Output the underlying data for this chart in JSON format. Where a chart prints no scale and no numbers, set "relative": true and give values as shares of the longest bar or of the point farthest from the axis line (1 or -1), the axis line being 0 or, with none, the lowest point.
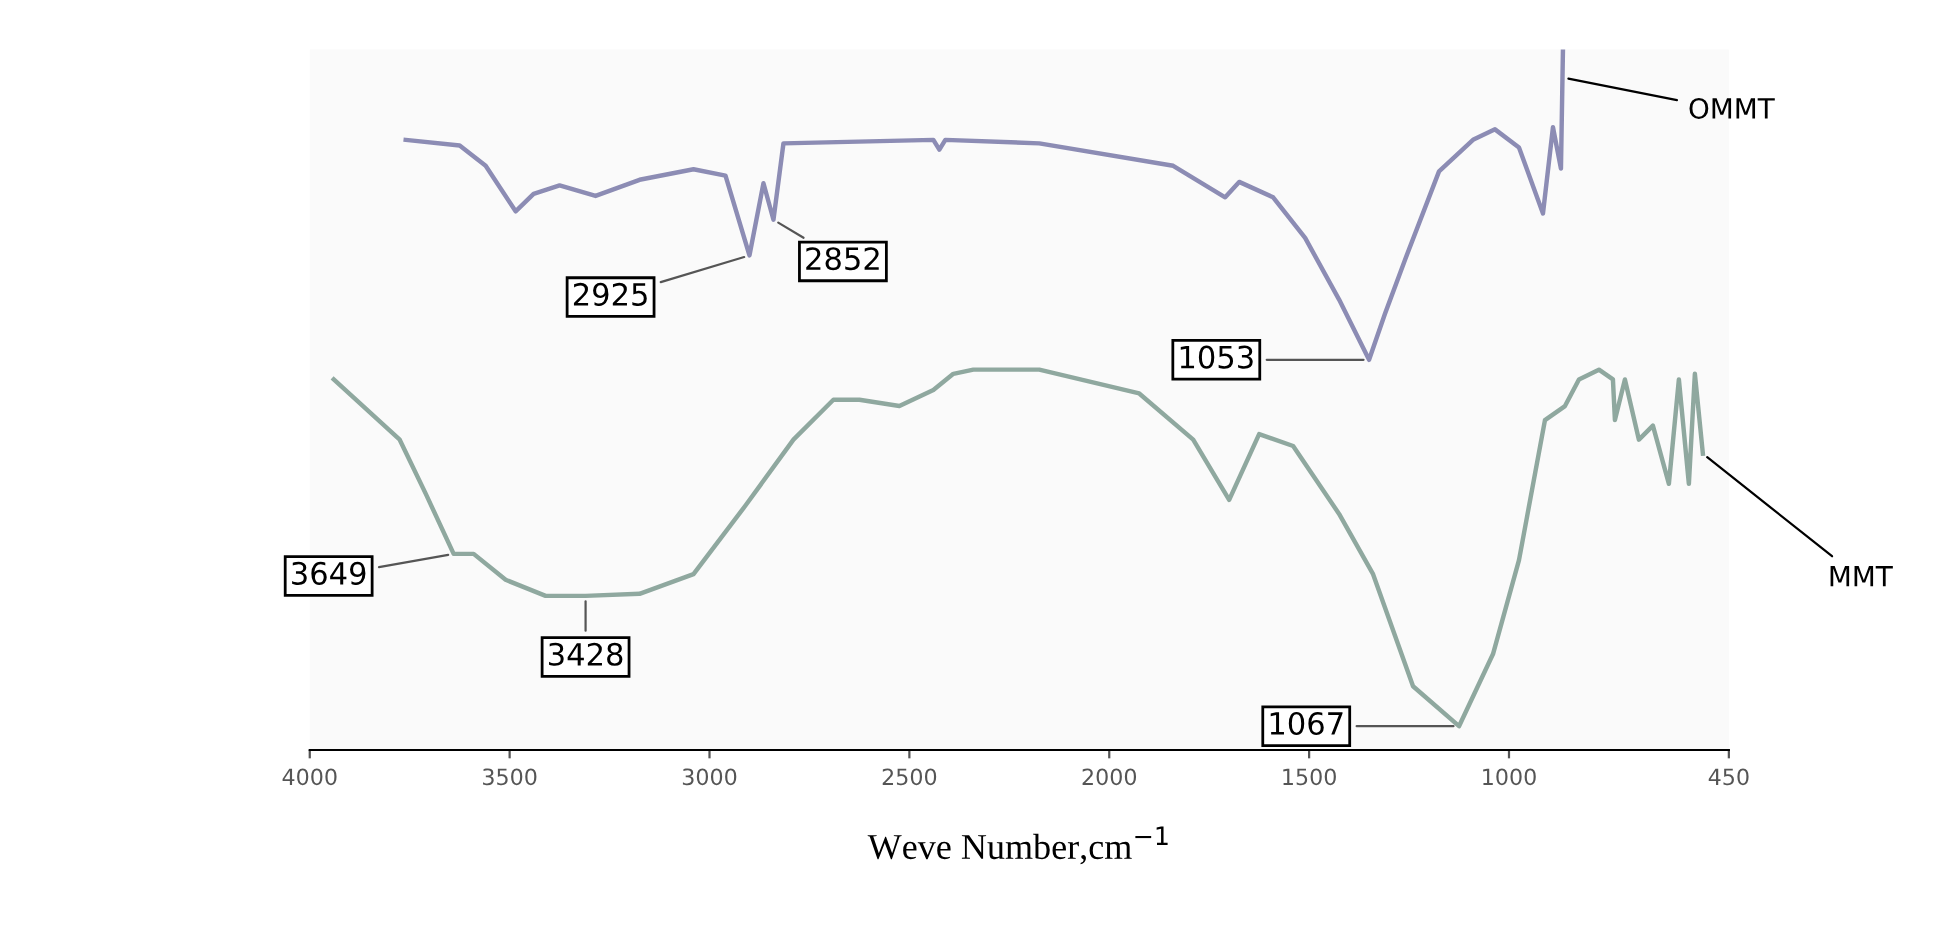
{
  "chart_data": {
    "type": "line",
    "relative": true,
    "xlabel": "Weve Number,cm$^{−1}$",
    "xlim": [
      4000,
      450
    ],
    "xticks": [
      4000,
      3500,
      3000,
      2500,
      2000,
      1500,
      1000,
      450
    ],
    "grid": false,
    "legend": false,
    "marker": "none",
    "line_style": "solid",
    "series": [
      {
        "name": "OMMT",
        "color": "#8c8cb4",
        "x": [
          3760,
          3625,
          3560,
          3485,
          3440,
          3375,
          3285,
          3175,
          3040,
          2960,
          2900,
          2865,
          2840,
          2815,
          2440,
          2425,
          2410,
          2175,
          1840,
          1710,
          1675,
          1590,
          1510,
          1425,
          1350,
          1310,
          1260,
          1175,
          1090,
          1035,
          975,
          915,
          890,
          870,
          865
        ],
        "values": [
          0.871,
          0.863,
          0.834,
          0.769,
          0.794,
          0.806,
          0.791,
          0.814,
          0.829,
          0.82,
          0.706,
          0.809,
          0.757,
          0.866,
          0.871,
          0.857,
          0.871,
          0.866,
          0.834,
          0.789,
          0.811,
          0.789,
          0.731,
          0.643,
          0.557,
          0.623,
          0.7,
          0.826,
          0.871,
          0.886,
          0.86,
          0.766,
          0.889,
          0.83,
          1.0
        ]
      },
      {
        "name": "MMT",
        "color": "#8fa89f",
        "x": [
          3940,
          3775,
          3710,
          3640,
          3590,
          3510,
          3410,
          3310,
          3175,
          3040,
          2910,
          2790,
          2690,
          2625,
          2525,
          2440,
          2390,
          2340,
          2175,
          1925,
          1790,
          1700,
          1625,
          1540,
          1425,
          1340,
          1240,
          1125,
          1040,
          975,
          910,
          860,
          825,
          775,
          740,
          735,
          710,
          675,
          640,
          600,
          575,
          550,
          535,
          515
        ],
        "values": [
          0.529,
          0.443,
          0.366,
          0.28,
          0.28,
          0.243,
          0.22,
          0.22,
          0.223,
          0.251,
          0.349,
          0.443,
          0.5,
          0.5,
          0.491,
          0.514,
          0.537,
          0.543,
          0.543,
          0.509,
          0.443,
          0.357,
          0.451,
          0.434,
          0.337,
          0.251,
          0.091,
          0.034,
          0.137,
          0.271,
          0.471,
          0.491,
          0.529,
          0.543,
          0.529,
          0.471,
          0.529,
          0.443,
          0.463,
          0.38,
          0.529,
          0.38,
          0.537,
          0.423
        ]
      }
    ],
    "annotations": [
      {
        "text": "2925",
        "x": 2900,
        "y": 0.706
      },
      {
        "text": "2852",
        "x": 2840,
        "y": 0.757
      },
      {
        "text": "1053",
        "x": 1350,
        "y": 0.557
      },
      {
        "text": "3649",
        "x": 3640,
        "y": 0.28
      },
      {
        "text": "3428",
        "x": 3310,
        "y": 0.22
      },
      {
        "text": "1067",
        "x": 1125,
        "y": 0.034
      }
    ]
  }
}
